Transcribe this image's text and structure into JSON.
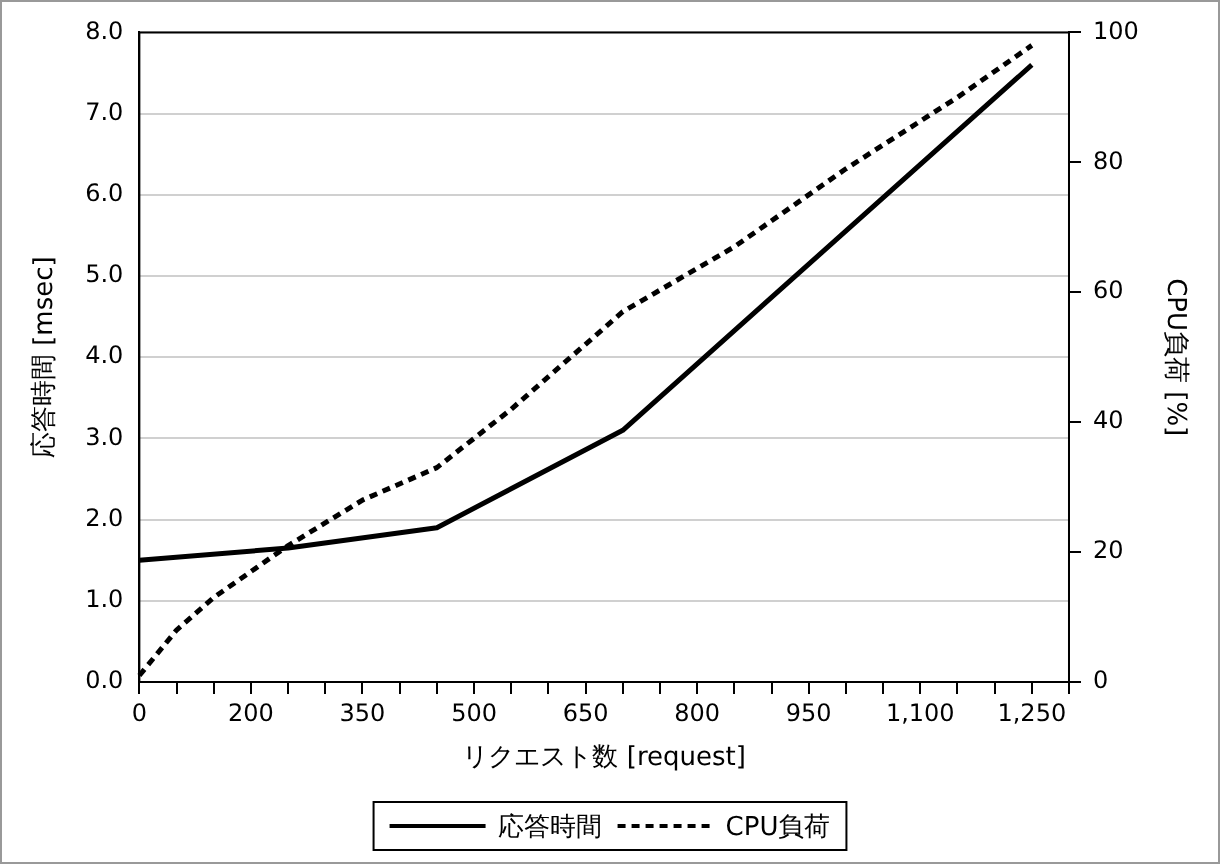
{
  "chart_data": {
    "type": "line",
    "xlabel": "リクエスト数 [request]",
    "ylabel": "応答時間 [msec]",
    "y2label": "CPU負荷 [%]",
    "categories": [
      "0",
      null,
      null,
      "200",
      null,
      null,
      "350",
      null,
      null,
      "500",
      null,
      null,
      "650",
      null,
      null,
      "800",
      null,
      null,
      "950",
      null,
      null,
      "1,100",
      null,
      null,
      "1,250",
      null
    ],
    "series": [
      {
        "name": "応答時間",
        "color": "#000000",
        "line_style": "solid",
        "values": [
          1.5,
          null,
          null,
          null,
          1.65,
          null,
          null,
          null,
          1.9,
          null,
          null,
          null,
          null,
          3.1,
          null,
          null,
          null,
          null,
          null,
          null,
          null,
          null,
          null,
          null,
          7.6,
          null
        ]
      },
      {
        "name": "CPU負荷",
        "color": "#000000",
        "line_style": "dashed",
        "axis": "y2",
        "values": [
          1,
          8,
          13,
          17,
          21,
          null,
          28,
          null,
          33,
          null,
          42,
          null,
          null,
          57,
          null,
          null,
          67,
          null,
          null,
          79,
          null,
          null,
          90,
          null,
          98,
          null
        ]
      }
    ],
    "ylim": [
      0,
      8
    ],
    "yticks": [
      {
        "value": 0,
        "label": "0.0"
      },
      {
        "value": 1,
        "label": "1.0"
      },
      {
        "value": 2,
        "label": "2.0"
      },
      {
        "value": 3,
        "label": "3.0"
      },
      {
        "value": 4,
        "label": "4.0"
      },
      {
        "value": 5,
        "label": "5.0"
      },
      {
        "value": 6,
        "label": "6.0"
      },
      {
        "value": 7,
        "label": "7.0"
      },
      {
        "value": 8,
        "label": "8.0"
      }
    ],
    "y2lim": [
      0,
      100
    ],
    "y2ticks": [
      0,
      20,
      40,
      60,
      80,
      100
    ],
    "grid": "y",
    "legend": "bottom",
    "marker": "none"
  }
}
